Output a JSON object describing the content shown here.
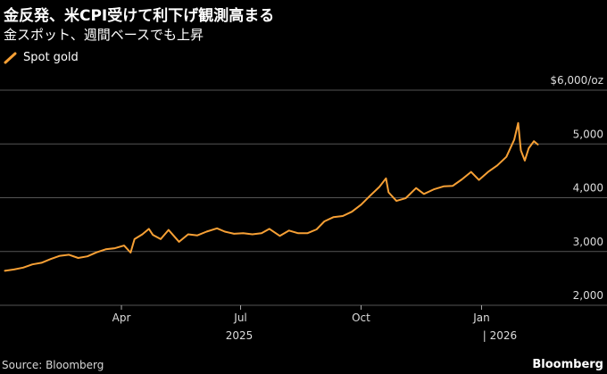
{
  "header": {
    "title": "金反発、米CPI受けて利下げ観測高まる",
    "subtitle": "金スポット、週間ベースでも上昇"
  },
  "footer": {
    "source": "Source: Bloomberg",
    "brand": "Bloomberg"
  },
  "colors": {
    "background": "#000000",
    "series": "#f7a035",
    "grid": "#555555",
    "text": "#ffffff"
  },
  "chart_data": {
    "type": "line",
    "ylabel": "$6,000/oz",
    "ylim": [
      2000,
      6000
    ],
    "y_ticks": [
      {
        "value": 6000,
        "label": "$6,000/oz"
      },
      {
        "value": 5000,
        "label": "5,000"
      },
      {
        "value": 4000,
        "label": "4,000"
      },
      {
        "value": 3000,
        "label": "3,000"
      },
      {
        "value": 2000,
        "label": "2,000"
      }
    ],
    "xlim": [
      "2025-01-01",
      "2026-02-14"
    ],
    "x_ticks": [
      {
        "date": "2025-04-01",
        "label": "Apr"
      },
      {
        "date": "2025-07-01",
        "label": "Jul"
      },
      {
        "date": "2025-10-01",
        "label": "Oct"
      },
      {
        "date": "2026-01-01",
        "label": "Jan"
      }
    ],
    "year_labels": [
      {
        "date": "2025-06-30",
        "label": "2025"
      },
      {
        "date": "2026-01-15",
        "label": "| 2026"
      }
    ],
    "grid": true,
    "legend": "top-left",
    "series": [
      {
        "name": "Spot gold",
        "points": [
          [
            "2025-01-02",
            2640
          ],
          [
            "2025-01-09",
            2665
          ],
          [
            "2025-01-16",
            2700
          ],
          [
            "2025-01-23",
            2760
          ],
          [
            "2025-01-30",
            2790
          ],
          [
            "2025-02-06",
            2860
          ],
          [
            "2025-02-13",
            2920
          ],
          [
            "2025-02-20",
            2940
          ],
          [
            "2025-02-27",
            2880
          ],
          [
            "2025-03-06",
            2910
          ],
          [
            "2025-03-13",
            2985
          ],
          [
            "2025-03-20",
            3040
          ],
          [
            "2025-03-27",
            3060
          ],
          [
            "2025-04-03",
            3110
          ],
          [
            "2025-04-08",
            2980
          ],
          [
            "2025-04-11",
            3230
          ],
          [
            "2025-04-17",
            3320
          ],
          [
            "2025-04-22",
            3420
          ],
          [
            "2025-04-25",
            3310
          ],
          [
            "2025-05-01",
            3230
          ],
          [
            "2025-05-07",
            3400
          ],
          [
            "2025-05-15",
            3180
          ],
          [
            "2025-05-22",
            3320
          ],
          [
            "2025-05-29",
            3300
          ],
          [
            "2025-06-05",
            3370
          ],
          [
            "2025-06-13",
            3430
          ],
          [
            "2025-06-19",
            3370
          ],
          [
            "2025-06-26",
            3330
          ],
          [
            "2025-07-03",
            3340
          ],
          [
            "2025-07-10",
            3320
          ],
          [
            "2025-07-17",
            3340
          ],
          [
            "2025-07-23",
            3420
          ],
          [
            "2025-07-31",
            3290
          ],
          [
            "2025-08-07",
            3390
          ],
          [
            "2025-08-14",
            3340
          ],
          [
            "2025-08-21",
            3340
          ],
          [
            "2025-08-28",
            3410
          ],
          [
            "2025-09-03",
            3560
          ],
          [
            "2025-09-10",
            3640
          ],
          [
            "2025-09-17",
            3660
          ],
          [
            "2025-09-24",
            3740
          ],
          [
            "2025-10-01",
            3870
          ],
          [
            "2025-10-08",
            4040
          ],
          [
            "2025-10-15",
            4200
          ],
          [
            "2025-10-20",
            4360
          ],
          [
            "2025-10-22",
            4100
          ],
          [
            "2025-10-28",
            3940
          ],
          [
            "2025-11-04",
            3990
          ],
          [
            "2025-11-12",
            4180
          ],
          [
            "2025-11-18",
            4070
          ],
          [
            "2025-11-26",
            4160
          ],
          [
            "2025-12-03",
            4210
          ],
          [
            "2025-12-10",
            4220
          ],
          [
            "2025-12-17",
            4340
          ],
          [
            "2025-12-24",
            4480
          ],
          [
            "2025-12-30",
            4330
          ],
          [
            "2026-01-06",
            4480
          ],
          [
            "2026-01-13",
            4600
          ],
          [
            "2026-01-20",
            4760
          ],
          [
            "2026-01-26",
            5080
          ],
          [
            "2026-01-29",
            5390
          ],
          [
            "2026-01-31",
            4880
          ],
          [
            "2026-02-03",
            4690
          ],
          [
            "2026-02-06",
            4920
          ],
          [
            "2026-02-10",
            5050
          ],
          [
            "2026-02-13",
            4990
          ]
        ]
      }
    ]
  }
}
